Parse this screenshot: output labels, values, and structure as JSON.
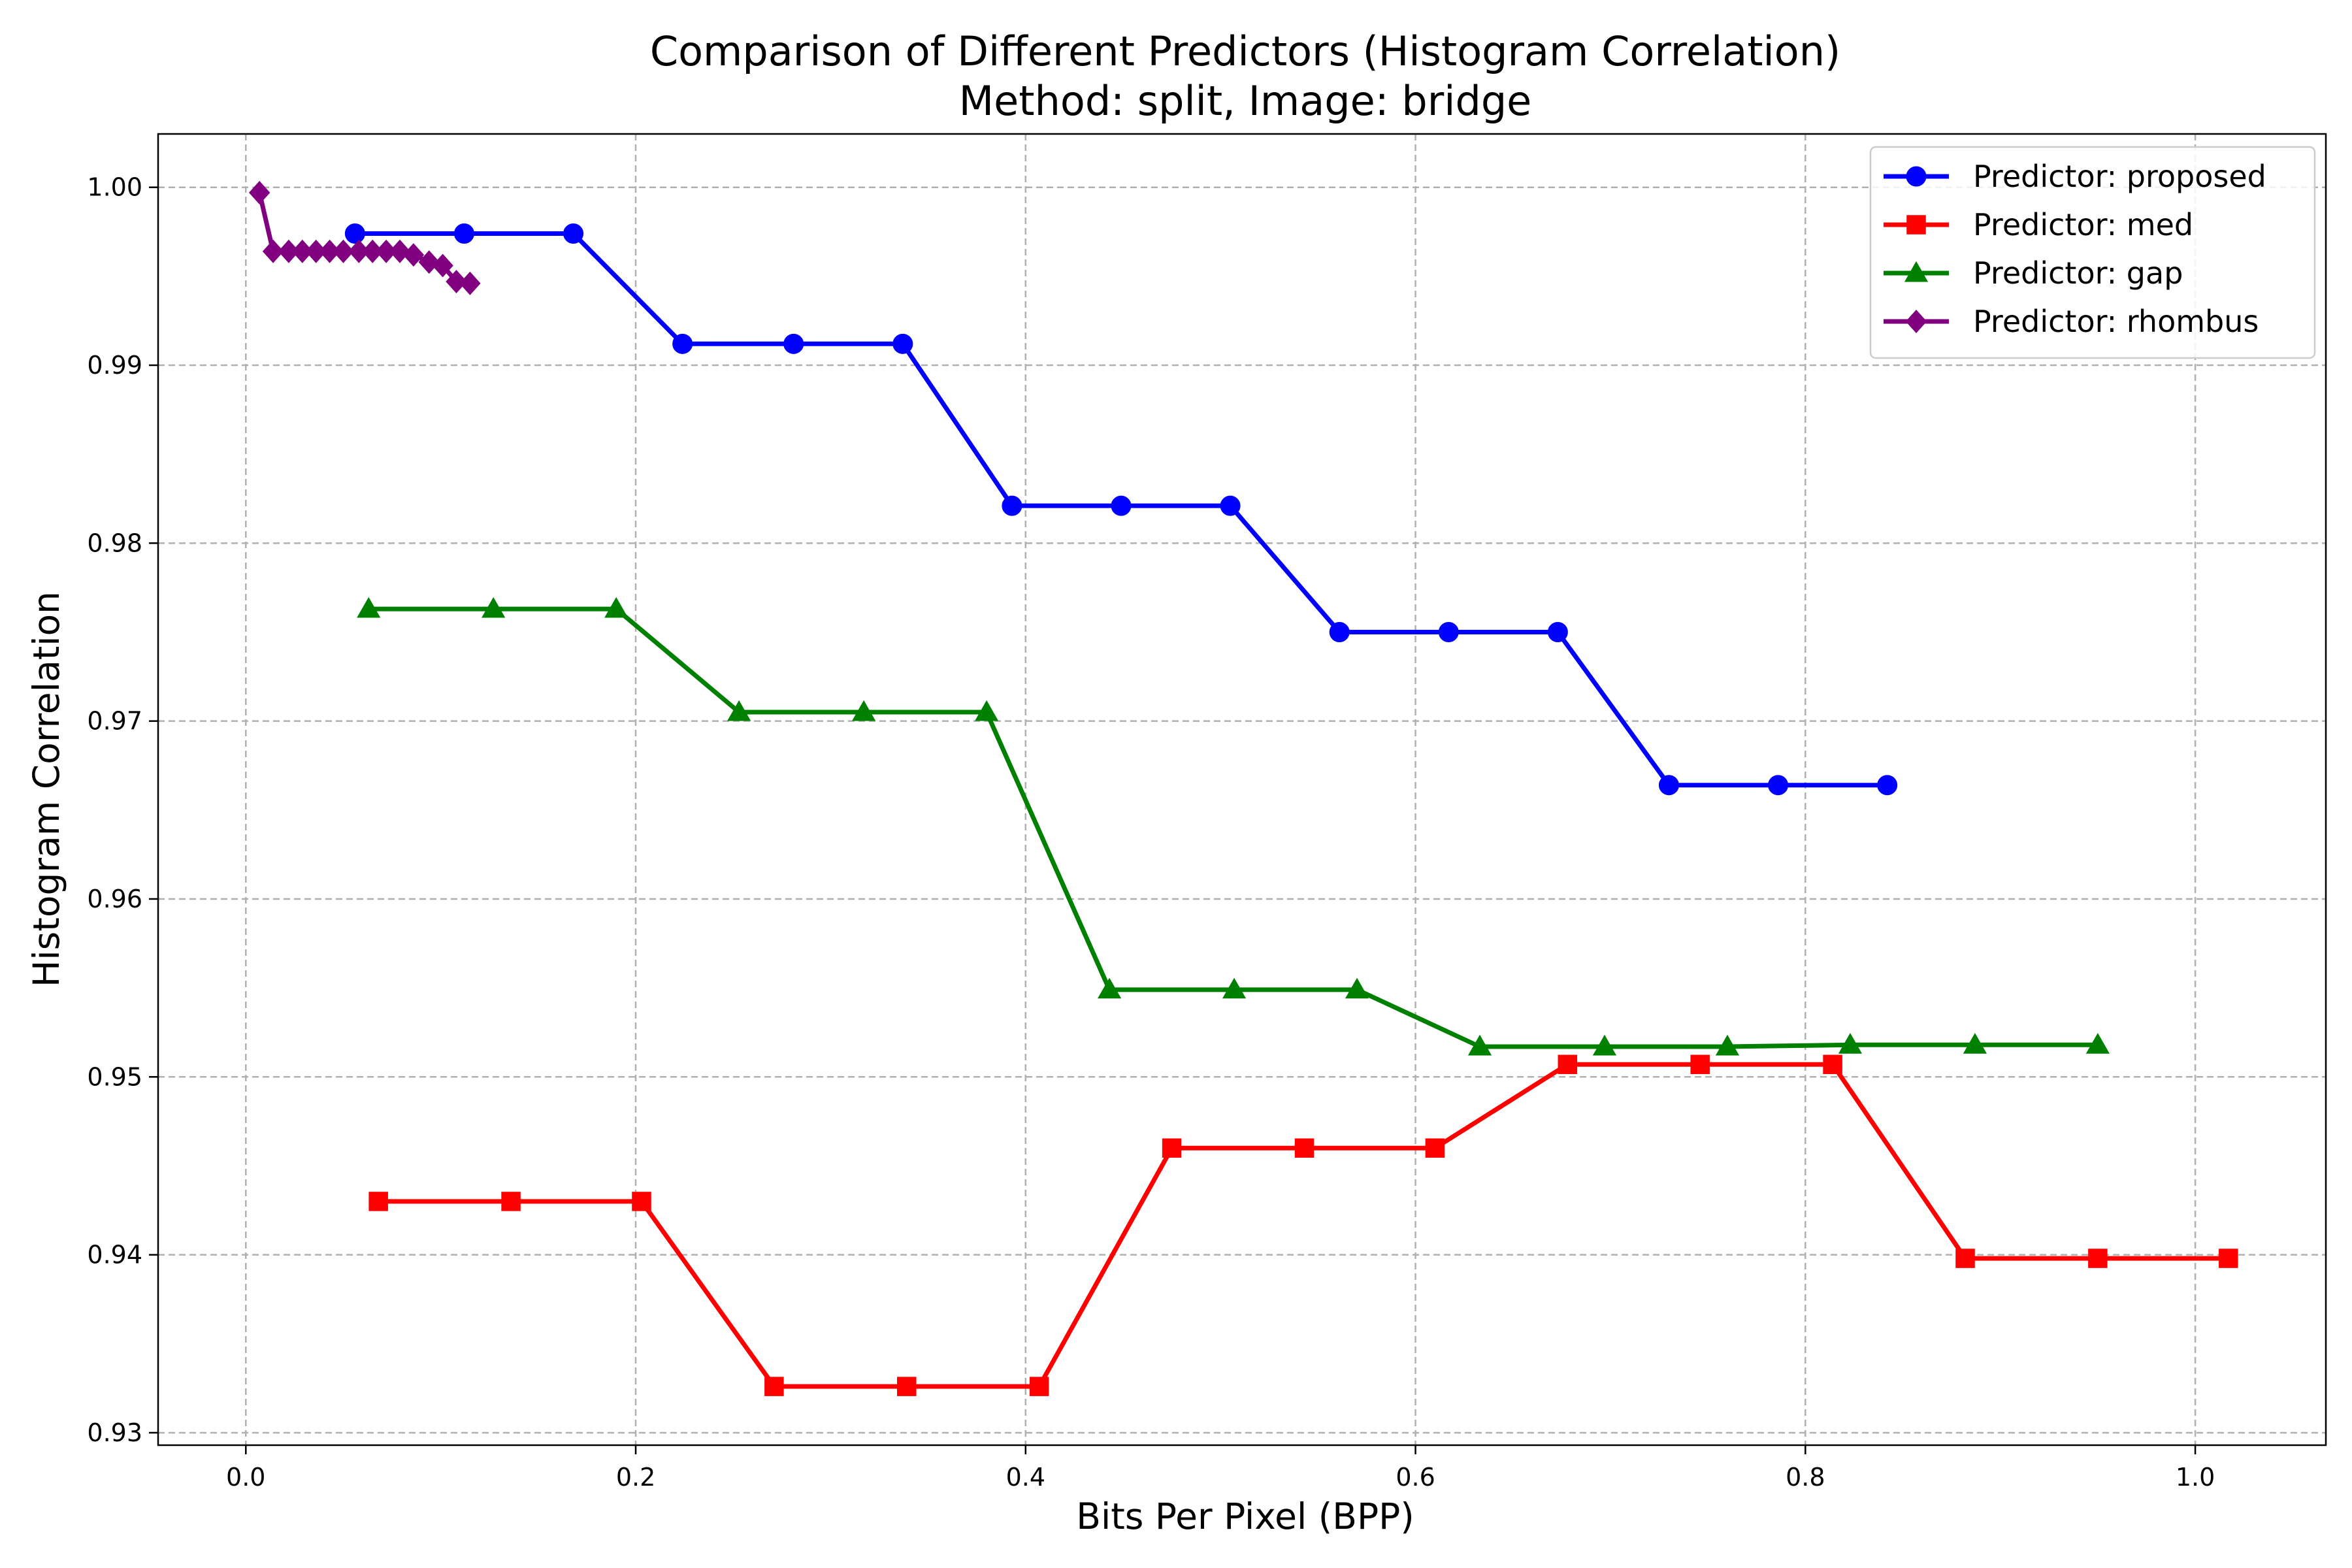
{
  "chart_data": {
    "type": "line",
    "title": "Comparison of Different Predictors (Histogram Correlation)",
    "subtitle": "Method: split, Image: bridge",
    "xlabel": "Bits Per Pixel (BPP)",
    "ylabel": "Histogram Correlation",
    "xlim": [
      -0.045,
      1.067
    ],
    "ylim": [
      0.9293,
      1.003
    ],
    "xticks": [
      0.0,
      0.2,
      0.4,
      0.6,
      0.8,
      1.0
    ],
    "xtick_labels": [
      "0.0",
      "0.2",
      "0.4",
      "0.6",
      "0.8",
      "1.0"
    ],
    "yticks": [
      0.93,
      0.94,
      0.95,
      0.96,
      0.97,
      0.98,
      0.99,
      1.0
    ],
    "ytick_labels": [
      "0.93",
      "0.94",
      "0.95",
      "0.96",
      "0.97",
      "0.98",
      "0.99",
      "1.00"
    ],
    "grid": true,
    "legend_position": "top-right",
    "series": [
      {
        "name": "Predictor: proposed",
        "color": "#0000ff",
        "marker": "circle",
        "x": [
          0.056,
          0.112,
          0.168,
          0.224,
          0.281,
          0.337,
          0.393,
          0.449,
          0.505,
          0.561,
          0.617,
          0.673,
          0.73,
          0.786,
          0.842
        ],
        "y": [
          0.9974,
          0.9974,
          0.9974,
          0.9912,
          0.9912,
          0.9912,
          0.9821,
          0.9821,
          0.9821,
          0.975,
          0.975,
          0.975,
          0.9664,
          0.9664,
          0.9664
        ]
      },
      {
        "name": "Predictor: med",
        "color": "#ff0000",
        "marker": "square",
        "x": [
          0.068,
          0.136,
          0.203,
          0.271,
          0.339,
          0.407,
          0.475,
          0.543,
          0.61,
          0.678,
          0.746,
          0.814,
          0.882,
          0.95,
          1.017
        ],
        "y": [
          0.943,
          0.943,
          0.943,
          0.9326,
          0.9326,
          0.9326,
          0.946,
          0.946,
          0.946,
          0.9507,
          0.9507,
          0.9507,
          0.9398,
          0.9398,
          0.9398
        ]
      },
      {
        "name": "Predictor: gap",
        "color": "#008000",
        "marker": "triangle",
        "x": [
          0.063,
          0.127,
          0.19,
          0.253,
          0.317,
          0.38,
          0.443,
          0.507,
          0.57,
          0.633,
          0.697,
          0.76,
          0.823,
          0.887,
          0.95
        ],
        "y": [
          0.9763,
          0.9763,
          0.9763,
          0.9705,
          0.9705,
          0.9705,
          0.9549,
          0.9549,
          0.9549,
          0.9517,
          0.9517,
          0.9517,
          0.9518,
          0.9518,
          0.9518
        ]
      },
      {
        "name": "Predictor: rhombus",
        "color": "#800080",
        "marker": "diamond",
        "x": [
          0.007,
          0.014,
          0.022,
          0.029,
          0.036,
          0.043,
          0.05,
          0.058,
          0.065,
          0.072,
          0.079,
          0.086,
          0.094,
          0.101,
          0.108,
          0.115
        ],
        "y": [
          0.9997,
          0.9964,
          0.9964,
          0.9964,
          0.9964,
          0.9964,
          0.9964,
          0.9964,
          0.9964,
          0.9964,
          0.9964,
          0.9962,
          0.9958,
          0.9956,
          0.9947,
          0.9946
        ]
      }
    ]
  }
}
